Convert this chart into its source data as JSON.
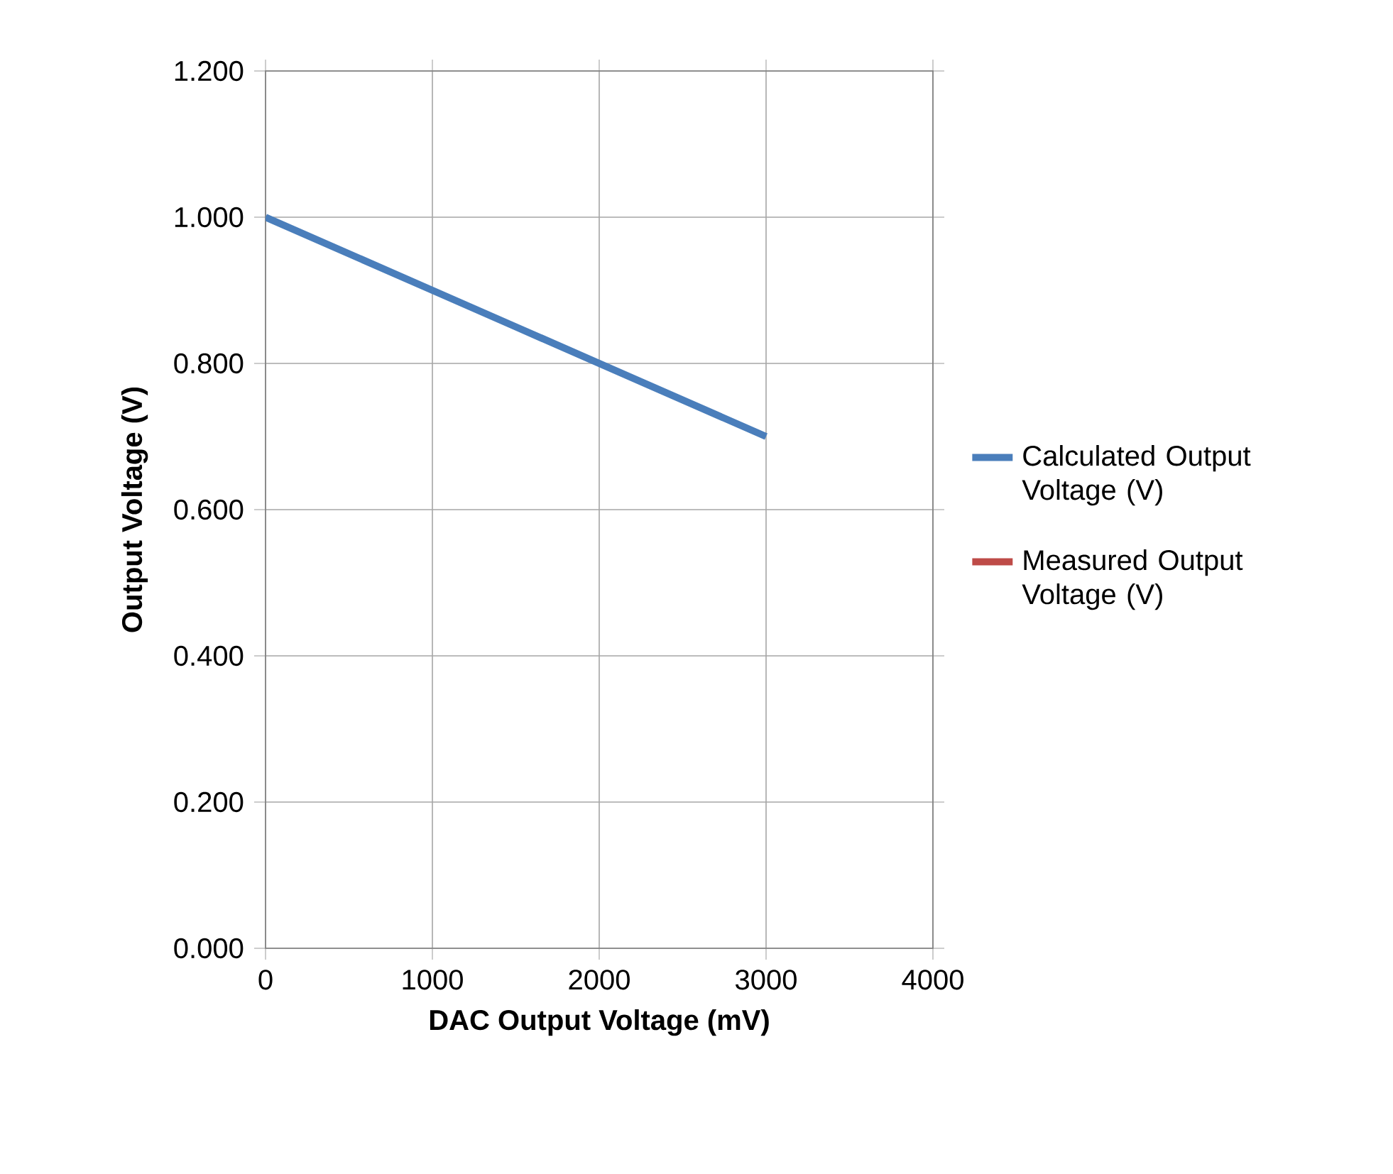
{
  "chart_data": {
    "type": "line",
    "xlabel": "DAC Output Voltage (mV)",
    "ylabel": "Output Voltage (V)",
    "x": [
      0,
      500,
      1000,
      1500,
      2000,
      2500,
      3000
    ],
    "series": [
      {
        "name": "Calculated Output Voltage (V)",
        "color": "#4a7ebb",
        "values": [
          1.0,
          0.95,
          0.9,
          0.85,
          0.8,
          0.75,
          0.7
        ]
      },
      {
        "name": "Measured Output Voltage (V)",
        "color": "#be4b48",
        "values": [
          null,
          null,
          null,
          null,
          null,
          null,
          null
        ]
      }
    ],
    "xlim": [
      0,
      4000
    ],
    "xticks": [
      0,
      1000,
      2000,
      3000,
      4000
    ],
    "ylim": [
      0,
      1.2
    ],
    "yticks": [
      {
        "value": 0,
        "label": "0.000"
      },
      {
        "value": 0.2,
        "label": "0.200"
      },
      {
        "value": 0.4,
        "label": "0.400"
      },
      {
        "value": 0.6,
        "label": "0.600"
      },
      {
        "value": 0.8,
        "label": "0.800"
      },
      {
        "value": 1.0,
        "label": "1.000"
      },
      {
        "value": 1.2,
        "label": "1.200"
      }
    ],
    "grid": true,
    "legend": "right",
    "marker": "none",
    "line_style": "solid"
  }
}
